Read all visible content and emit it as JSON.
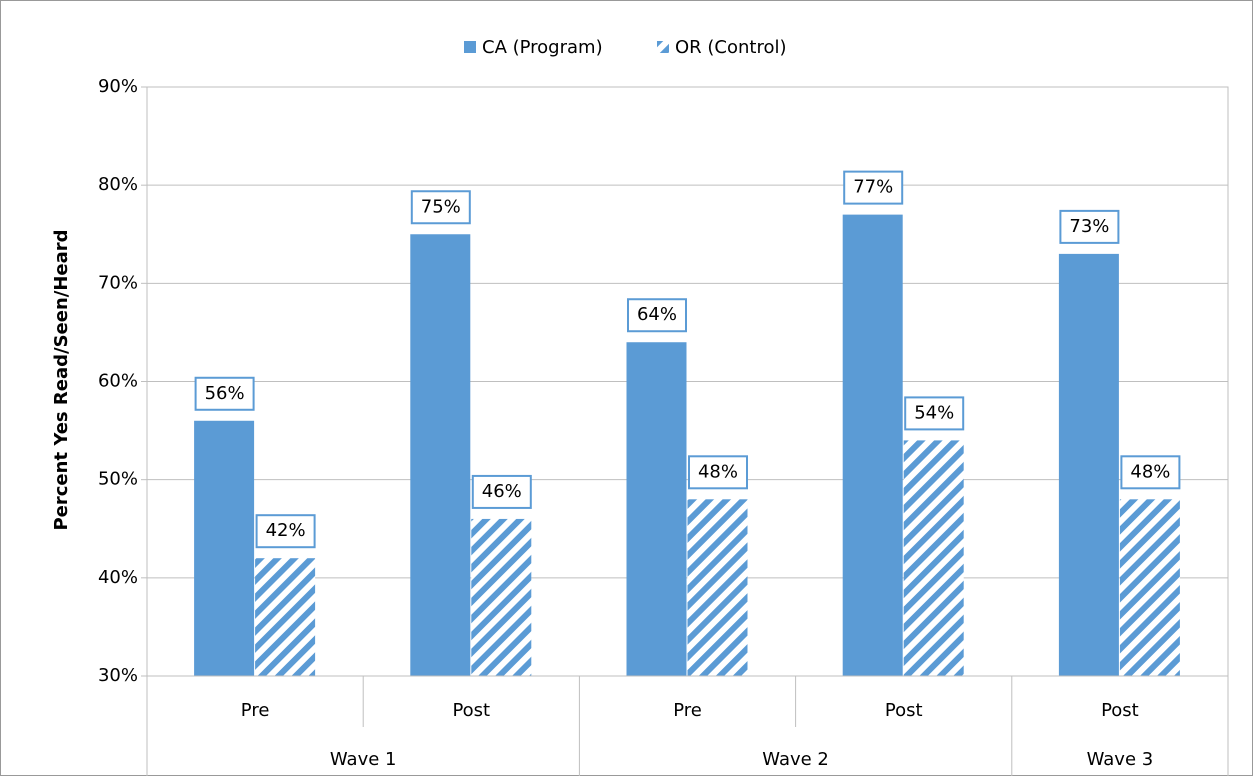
{
  "chart_data": {
    "type": "bar",
    "y_label": "Percent Yes Read/Seen/Heard",
    "categories": [
      "Pre",
      "Post",
      "Pre",
      "Post",
      "Post"
    ],
    "groups": [
      {
        "label": "Wave 1",
        "size": 2
      },
      {
        "label": "Wave 2",
        "size": 2
      },
      {
        "label": "Wave 3",
        "size": 1
      }
    ],
    "series": [
      {
        "name": "CA (Program)",
        "color": "#5b9bd5",
        "pattern": "solid",
        "values": [
          56,
          75,
          64,
          77,
          73
        ],
        "value_labels": [
          "56%",
          "75%",
          "64%",
          "77%",
          "73%"
        ]
      },
      {
        "name": "OR (Control)",
        "color": "#5b9bd5",
        "pattern": "hatch",
        "values": [
          42,
          46,
          48,
          54,
          48
        ],
        "value_labels": [
          "42%",
          "46%",
          "48%",
          "54%",
          "48%"
        ]
      }
    ],
    "ylim": [
      30,
      90
    ],
    "yticks": [
      {
        "value": 30,
        "label": "30%"
      },
      {
        "value": 40,
        "label": "40%"
      },
      {
        "value": 50,
        "label": "50%"
      },
      {
        "value": 60,
        "label": "60%"
      },
      {
        "value": 70,
        "label": "70%"
      },
      {
        "value": 80,
        "label": "80%"
      },
      {
        "value": 90,
        "label": "90%"
      }
    ],
    "grid": true,
    "legend": "top"
  }
}
